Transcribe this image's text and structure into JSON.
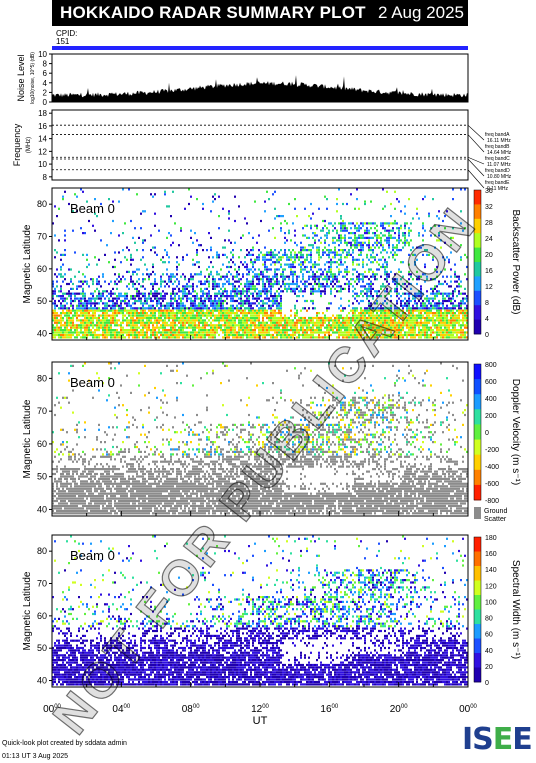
{
  "header": {
    "title": "HOKKAIDO RADAR SUMMARY PLOT",
    "date": "2 Aug 2025"
  },
  "cpid": {
    "label": "CPID:",
    "value": "151"
  },
  "colors": {
    "cpid_bar": "#2323ff",
    "ground_scatter": "#8c8c8c",
    "title_bg": "#000000"
  },
  "noise": {
    "ylabel": "Noise Level",
    "sublabel": "log10(noise, 10^5) (dB)",
    "yticks": [
      0,
      2,
      4,
      6,
      8,
      10
    ]
  },
  "frequency": {
    "ylabel": "Frequency",
    "unit": "(MHz)",
    "yticks": [
      8,
      10,
      12,
      14,
      16,
      18
    ],
    "bands": [
      {
        "label": "freq bandA",
        "value": "16.11 MHz",
        "mhz": 16.11
      },
      {
        "label": "freq bandB",
        "value": "14.64 MHz",
        "mhz": 14.64
      },
      {
        "label": "freq bandC",
        "value": "11.07 MHz",
        "mhz": 11.07
      },
      {
        "label": "freq bandD",
        "value": "10.80 MHz",
        "mhz": 10.8
      },
      {
        "label": "freq bandE",
        "value": "9.11 MHz",
        "mhz": 9.11
      }
    ]
  },
  "chart_data": [
    {
      "type": "heatmap",
      "id": "power",
      "beam_label": "Beam 0",
      "ylabel": "Magnetic Latitude",
      "ylim": [
        38,
        85
      ],
      "yticks": [
        40,
        50,
        60,
        70,
        80
      ],
      "colorbar": {
        "label": "Backscatter Power (dB)",
        "ticks": [
          "36",
          "32",
          "28",
          "24",
          "20",
          "16",
          "12",
          "8",
          "4",
          "0"
        ]
      }
    },
    {
      "type": "heatmap",
      "id": "velocity",
      "beam_label": "Beam 0",
      "ylabel": "Magnetic Latitude",
      "ylim": [
        38,
        85
      ],
      "yticks": [
        40,
        50,
        60,
        70,
        80
      ],
      "colorbar": {
        "label": "Doppler Velocity (m s⁻¹)",
        "ticks": [
          "800",
          "600",
          "400",
          "200",
          "0",
          "-200",
          "-400",
          "-600",
          "-800"
        ]
      },
      "ground_scatter": {
        "line1": "Ground",
        "line2": "Scatter"
      }
    },
    {
      "type": "heatmap",
      "id": "width",
      "beam_label": "Beam 0",
      "ylabel": "Magnetic Latitude",
      "ylim": [
        38,
        85
      ],
      "yticks": [
        40,
        50,
        60,
        70,
        80
      ],
      "colorbar": {
        "label": "Spectral Width (m s⁻¹)",
        "ticks": [
          "180",
          "160",
          "140",
          "120",
          "100",
          "80",
          "60",
          "40",
          "20",
          "0"
        ]
      }
    }
  ],
  "time_axis": {
    "xlabel": "UT",
    "ticks": [
      {
        "h": "00",
        "m": "00"
      },
      {
        "h": "04",
        "m": "00"
      },
      {
        "h": "08",
        "m": "00"
      },
      {
        "h": "12",
        "m": "00"
      },
      {
        "h": "16",
        "m": "00"
      },
      {
        "h": "20",
        "m": "00"
      },
      {
        "h": "00",
        "m": "00"
      }
    ]
  },
  "footer": {
    "credit": "Quick-look plot created by sddata admin",
    "stamp": "01:13 UT  3 Aug 2025"
  },
  "logo": {
    "text": "ISEE"
  },
  "watermark": "NOT FOR PUBLICATION"
}
